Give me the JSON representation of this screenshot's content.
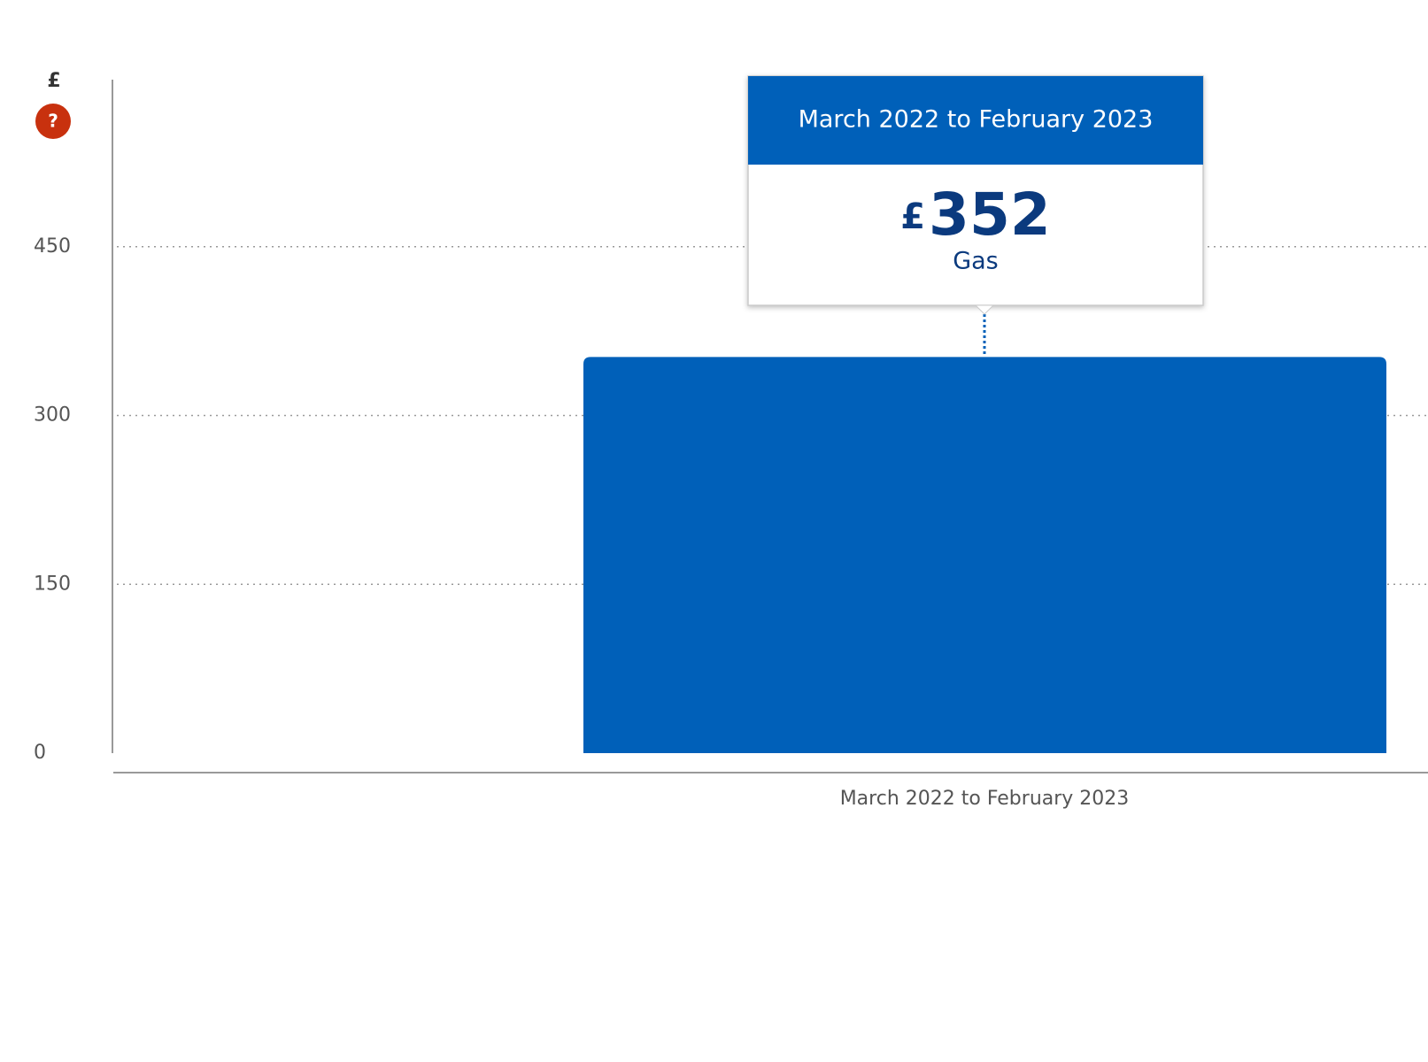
{
  "chart_data": {
    "type": "bar",
    "y_label": "£",
    "help_icon": "?",
    "categories": [
      "March 2022 to February 2023"
    ],
    "series": [
      {
        "name": "Gas",
        "color": "#0060b9",
        "values": [
          352
        ]
      }
    ],
    "ylim": [
      0,
      600
    ],
    "yticks": [
      0,
      150,
      300,
      450
    ],
    "grid": true
  }
}
